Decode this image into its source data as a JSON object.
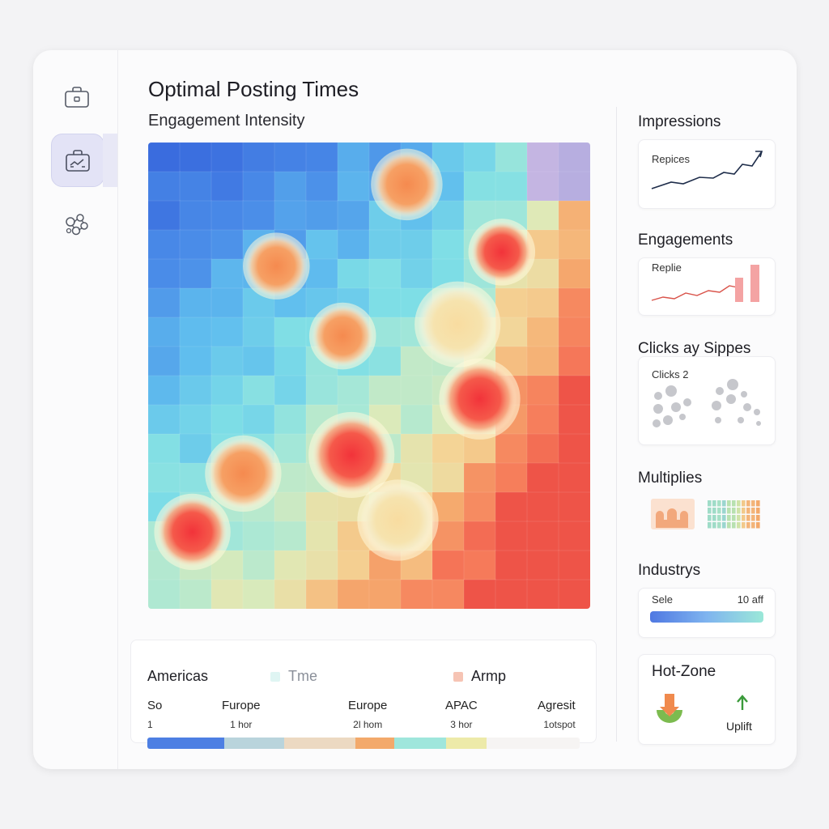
{
  "header": {
    "title": "Optimal Posting Times",
    "subtitle": "Engagement Intensity"
  },
  "sidebar": {
    "items": [
      {
        "icon": "briefcase-icon"
      },
      {
        "icon": "briefcase-chart-icon",
        "active": true
      },
      {
        "icon": "nodes-icon"
      }
    ]
  },
  "heatmap": {
    "rows": 16,
    "cols": 14,
    "hotspots": [
      "warm",
      "warm",
      "warm",
      "hot",
      "warm",
      "hot",
      "hot",
      "mid",
      "mid",
      "hot",
      "mid"
    ]
  },
  "legend": {
    "headers": [
      {
        "label": "Americas"
      },
      {
        "label": "Tme",
        "color": "#dff5f3"
      },
      {
        "label": "Armp",
        "color": "#f6c4b4"
      }
    ],
    "columns": [
      {
        "label": "So",
        "sub": "1"
      },
      {
        "label": "Furope",
        "sub": "1 hor"
      },
      {
        "label": "Europe",
        "sub": "2l hom"
      },
      {
        "label": "APAC",
        "sub": "3 hor"
      },
      {
        "label": "Agresit",
        "sub": "1otspot"
      }
    ],
    "bar_colors": [
      "#4d7fe3",
      "#b9d4dc",
      "#ecd9c2",
      "#f3a96b",
      "#9fe6dc",
      "#edeaa9",
      "#f6f4f3"
    ]
  },
  "panels": {
    "impressions": {
      "title": "Impressions",
      "label": "Repices"
    },
    "engagements": {
      "title": "Engagements",
      "label": "Replie"
    },
    "clicks": {
      "title": "Clicks ay Sippes",
      "label": "Clicks 2"
    },
    "multiples": {
      "title": "Multiplies"
    },
    "industry": {
      "title": "Industrys",
      "left": "Sele",
      "right": "10 aff"
    },
    "hotzone": {
      "title": "Hot-Zone",
      "uplift": "Uplift"
    }
  },
  "colors": {
    "accent": "#4a74e0",
    "hot": "#f45a4a",
    "warm": "#f59a5c",
    "cool": "#f5e3ac",
    "uplift": "#3a9a3a"
  }
}
